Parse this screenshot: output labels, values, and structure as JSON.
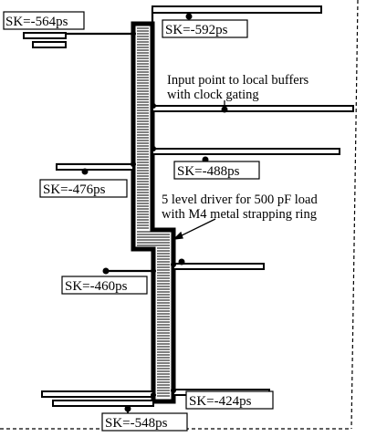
{
  "skew_labels": {
    "top_left": "SK=-564ps",
    "top_right": "SK=-592ps",
    "mid_right": "SK=-488ps",
    "mid_left": "SK=-476ps",
    "lower_left": "SK=-460ps",
    "bottom_right": "SK=-424ps",
    "bottom_center": "SK=-548ps"
  },
  "annotations": {
    "input_point_line1": "Input point to local buffers",
    "input_point_line2": "with clock gating",
    "driver_line1": "5 level driver for 500 pF load",
    "driver_line2": "with M4 metal strapping ring"
  }
}
